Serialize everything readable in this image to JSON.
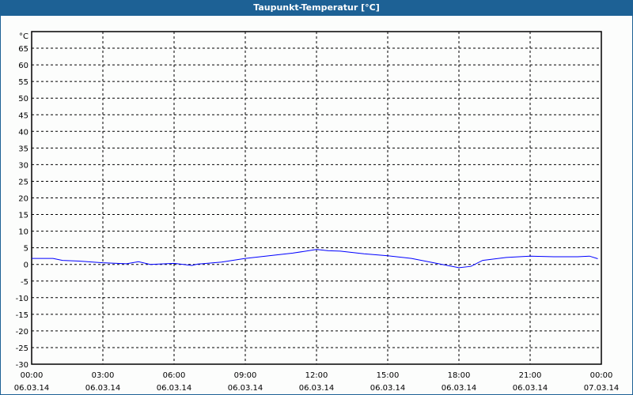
{
  "window": {
    "title": "Taupunkt-Temperatur [°C]"
  },
  "chart_data": {
    "type": "line",
    "title": "Taupunkt-Temperatur [°C]",
    "ylabel": "°C",
    "ylim": [
      -30,
      70
    ],
    "yticks": [
      65,
      60,
      55,
      50,
      45,
      40,
      35,
      30,
      25,
      20,
      15,
      10,
      5,
      0,
      -5,
      -10,
      -15,
      -20,
      -25,
      -30
    ],
    "xlim_hours": [
      0,
      24
    ],
    "xticks": [
      {
        "time": "00:00",
        "date": "06.03.14"
      },
      {
        "time": "03:00",
        "date": "06.03.14"
      },
      {
        "time": "06:00",
        "date": "06.03.14"
      },
      {
        "time": "09:00",
        "date": "06.03.14"
      },
      {
        "time": "12:00",
        "date": "06.03.14"
      },
      {
        "time": "15:00",
        "date": "06.03.14"
      },
      {
        "time": "18:00",
        "date": "06.03.14"
      },
      {
        "time": "21:00",
        "date": "06.03.14"
      },
      {
        "time": "00:00",
        "date": "07.03.14"
      }
    ],
    "grid": true,
    "line_color": "#0000ff",
    "series": [
      {
        "x_hours": [
          0,
          0.9,
          1.3,
          2,
          3,
          4,
          4.5,
          5,
          6,
          6.75,
          7,
          8,
          9,
          10,
          11,
          12,
          12.5,
          13,
          14,
          15,
          16,
          17,
          18,
          18.5,
          19,
          20,
          21,
          22,
          23,
          23.5,
          23.85
        ],
        "values": [
          1.8,
          1.8,
          1.2,
          1.0,
          0.5,
          0.2,
          0.8,
          0.0,
          0.3,
          -0.3,
          0.1,
          0.7,
          1.8,
          2.6,
          3.4,
          4.5,
          4.1,
          4.0,
          3.2,
          2.6,
          1.8,
          0.4,
          -1.0,
          -0.6,
          1.2,
          2.1,
          2.5,
          2.3,
          2.3,
          2.5,
          1.7
        ]
      }
    ]
  }
}
